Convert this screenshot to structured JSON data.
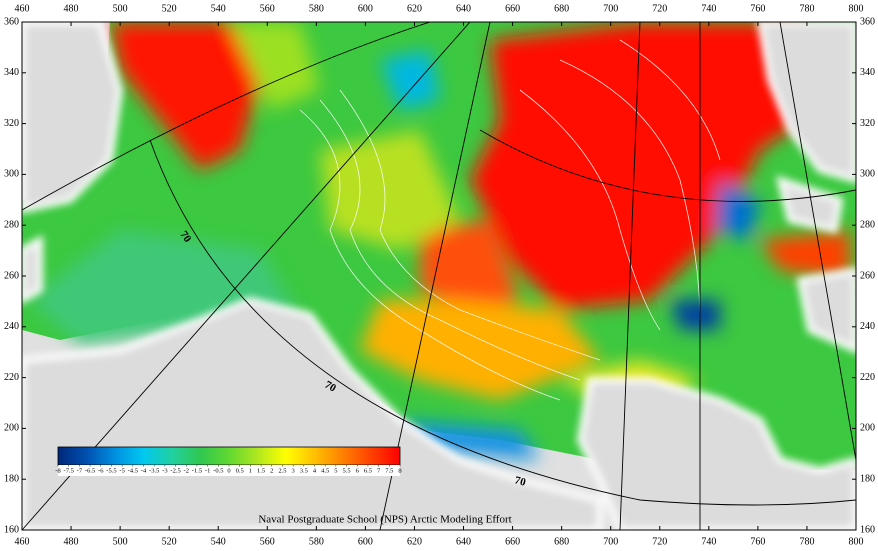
{
  "map": {
    "credit": "Naval Postgraduate School (NPS) Arctic Modeling Effort",
    "x_axis": {
      "lim": [
        460,
        800
      ],
      "ticks": [
        460,
        480,
        500,
        520,
        540,
        560,
        580,
        600,
        620,
        640,
        660,
        680,
        700,
        720,
        740,
        760,
        780,
        800
      ]
    },
    "y_axis": {
      "lim": [
        160,
        360
      ],
      "ticks": [
        160,
        180,
        200,
        220,
        240,
        260,
        280,
        300,
        320,
        340,
        360
      ]
    },
    "colorbar": {
      "lim": [
        -8,
        8
      ],
      "ticks": [
        -8,
        -7.5,
        -7,
        -6.5,
        -6,
        -5.5,
        -5,
        -4.5,
        -4,
        -3.5,
        -3,
        -2.5,
        -2,
        -1.5,
        -1,
        -0.5,
        0,
        0.5,
        1,
        1.5,
        2,
        2.5,
        3,
        3.5,
        4,
        4.5,
        5,
        5.5,
        6,
        6.5,
        7,
        7.5,
        8
      ],
      "colors": [
        "#00287a",
        "#0050b0",
        "#0090e0",
        "#00c8f0",
        "#20d0a0",
        "#30c850",
        "#60d830",
        "#b0e820",
        "#ffff00",
        "#ffc000",
        "#ff8000",
        "#ff4000",
        "#ff0000"
      ]
    },
    "contour_labels": [
      "70",
      "70",
      "70"
    ]
  }
}
